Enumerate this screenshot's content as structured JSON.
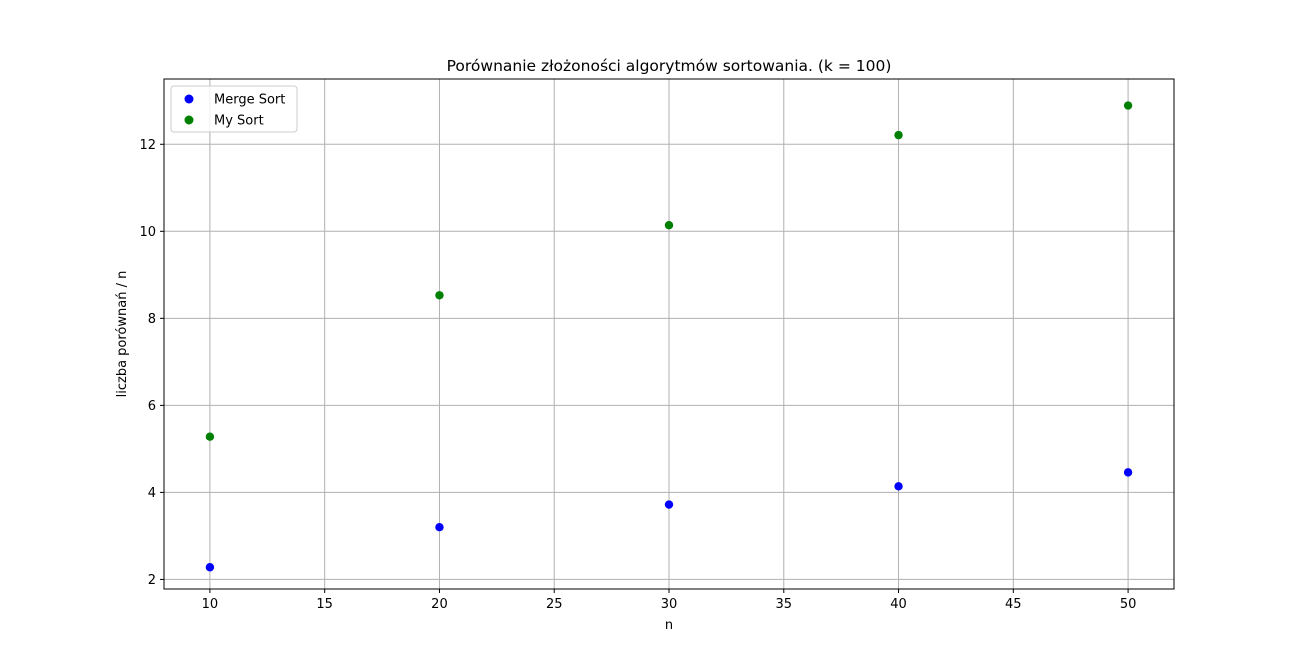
{
  "chart_data": {
    "type": "scatter",
    "title": "Porównanie złożoności algorytmów sortowania. (k = 100)",
    "xlabel": "n",
    "ylabel": "liczba porównań / n",
    "xlim": [
      8,
      52
    ],
    "ylim": [
      1.78,
      13.5
    ],
    "xticks": [
      10,
      15,
      20,
      25,
      30,
      35,
      40,
      45,
      50
    ],
    "yticks": [
      2,
      4,
      6,
      8,
      10,
      12
    ],
    "grid": true,
    "legend_position": "top-left",
    "series": [
      {
        "name": "Merge Sort",
        "color": "#0000ff",
        "x": [
          10,
          20,
          30,
          40,
          50
        ],
        "y": [
          2.28,
          3.2,
          3.72,
          4.14,
          4.46
        ]
      },
      {
        "name": "My Sort",
        "color": "#008000",
        "x": [
          10,
          20,
          30,
          40,
          50
        ],
        "y": [
          5.28,
          8.53,
          10.14,
          12.21,
          12.89
        ]
      }
    ]
  }
}
